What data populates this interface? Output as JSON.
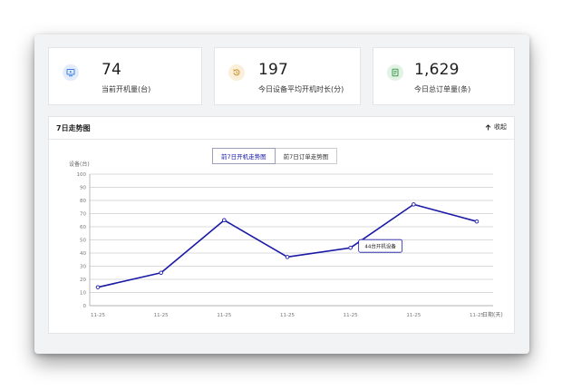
{
  "stats": [
    {
      "value": "74",
      "label": "当前开机量(台)",
      "icon": "monitor-icon",
      "color": "#3b7be0",
      "bg": "#e3ecfb"
    },
    {
      "value": "197",
      "label": "今日设备平均开机时长(分)",
      "icon": "clock-history-icon",
      "color": "#c8902a",
      "bg": "#fbefd9"
    },
    {
      "value": "1,629",
      "label": "今日总订单量(条)",
      "icon": "order-doc-icon",
      "color": "#3f9b4f",
      "bg": "#e2f3e5"
    }
  ],
  "panel": {
    "title": "7日走势图",
    "collapse_label": "收起",
    "tabs": [
      {
        "label": "前7日开机走势图",
        "active": true
      },
      {
        "label": "前7日订单走势图",
        "active": false
      }
    ]
  },
  "chart_data": {
    "type": "line",
    "ylabel": "设备(台)",
    "xlabel": "日期(天)",
    "ylim": [
      0,
      100
    ],
    "yticks": [
      0,
      10,
      20,
      30,
      40,
      50,
      60,
      70,
      80,
      90,
      100
    ],
    "categories": [
      "11-25",
      "11-25",
      "11-25",
      "11-25",
      "11-25",
      "11-25",
      "11-25"
    ],
    "series": [
      {
        "values": [
          14,
          25,
          65,
          37,
          44,
          77,
          64
        ]
      }
    ],
    "tooltip": {
      "text": "44台开机设备",
      "index": 4
    },
    "grid": true,
    "color": "#1a1aa6"
  }
}
